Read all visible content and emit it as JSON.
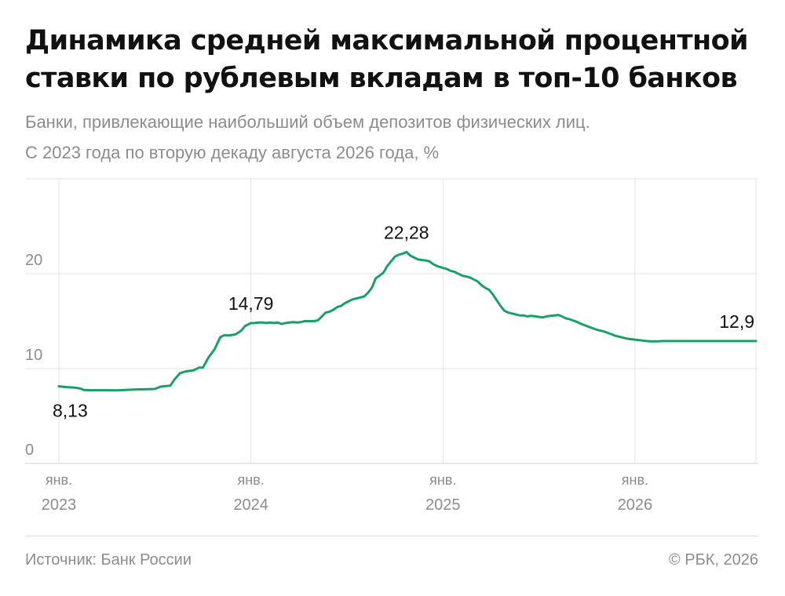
{
  "title": "Динамика средней максимальной процентной ставки по рублевым вкладам в топ-10 банков",
  "subtitle_line1": "Банки, привлекающие наибольший объем депозитов физических лиц.",
  "subtitle_line2": "С 2023 года по вторую декаду августа 2026 года, %",
  "source": "Источник: Банк России",
  "copyright": "© РБК, 2026",
  "colors": {
    "line": "#1aa067",
    "grid": "#e3e3e3",
    "axis_text": "#8c8c8c",
    "label_text": "#111111"
  },
  "chart_data": {
    "type": "line",
    "title": "Динамика средней максимальной процентной ставки по рублевым вкладам в топ-10 банков",
    "xlabel": "",
    "ylabel": "",
    "grid": true,
    "ylim": [
      0,
      30
    ],
    "yticks": [
      0,
      10,
      20
    ],
    "xlim": [
      2023.0,
      2026.63
    ],
    "xticks": [
      {
        "x": 2023,
        "label_top": "янв.",
        "label_bottom": "2023"
      },
      {
        "x": 2024,
        "label_top": "янв.",
        "label_bottom": "2024"
      },
      {
        "x": 2025,
        "label_top": "янв.",
        "label_bottom": "2025"
      },
      {
        "x": 2026,
        "label_top": "янв.",
        "label_bottom": "2026"
      }
    ],
    "series": [
      {
        "x": [
          2023.0,
          2023.04,
          2023.08,
          2023.11,
          2023.13,
          2023.16,
          2023.2,
          2023.25,
          2023.3,
          2023.35,
          2023.4,
          2023.45,
          2023.5,
          2023.53,
          2023.58,
          2023.6,
          2023.63,
          2023.66,
          2023.68,
          2023.7,
          2023.73,
          2023.75,
          2023.78,
          2023.81,
          2023.84,
          2023.86,
          2023.89,
          2023.92,
          2023.95,
          2023.97,
          2024.0,
          2024.02,
          2024.04,
          2024.06,
          2024.08,
          2024.1,
          2024.12,
          2024.14,
          2024.16,
          2024.18,
          2024.2,
          2024.22,
          2024.24,
          2024.26,
          2024.28,
          2024.31,
          2024.33,
          2024.35,
          2024.37,
          2024.39,
          2024.41,
          2024.43,
          2024.45,
          2024.47,
          2024.49,
          2024.51,
          2024.53,
          2024.55,
          2024.57,
          2024.59,
          2024.61,
          2024.63,
          2024.65,
          2024.67,
          2024.69,
          2024.71,
          2024.73,
          2024.75,
          2024.77,
          2024.79,
          2024.81,
          2024.83,
          2024.85,
          2024.87,
          2024.89,
          2024.91,
          2024.93,
          2024.95,
          2024.97,
          2025.0,
          2025.02,
          2025.04,
          2025.06,
          2025.08,
          2025.1,
          2025.12,
          2025.14,
          2025.16,
          2025.18,
          2025.2,
          2025.22,
          2025.24,
          2025.26,
          2025.28,
          2025.3,
          2025.32,
          2025.34,
          2025.36,
          2025.38,
          2025.4,
          2025.42,
          2025.44,
          2025.46,
          2025.48,
          2025.5,
          2025.52,
          2025.54,
          2025.56,
          2025.58,
          2025.6,
          2025.62,
          2025.64,
          2025.66,
          2025.68,
          2025.7,
          2025.72,
          2025.74,
          2025.76,
          2025.78,
          2025.8,
          2025.82,
          2025.84,
          2025.86,
          2025.88,
          2025.9,
          2025.92,
          2025.94,
          2025.96,
          2025.98,
          2026.0,
          2026.02,
          2026.04,
          2026.06,
          2026.08,
          2026.1,
          2026.12,
          2026.14,
          2026.16,
          2026.18,
          2026.2,
          2026.22,
          2026.24,
          2026.26,
          2026.28,
          2026.3,
          2026.32,
          2026.34,
          2026.36,
          2026.38,
          2026.4,
          2026.42,
          2026.44,
          2026.46,
          2026.48,
          2026.5,
          2026.52,
          2026.54,
          2026.56,
          2026.58,
          2026.6,
          2026.63
        ],
        "values": [
          8.13,
          8.05,
          8.0,
          7.9,
          7.75,
          7.72,
          7.72,
          7.72,
          7.7,
          7.75,
          7.8,
          7.82,
          7.85,
          8.1,
          8.2,
          8.8,
          9.5,
          9.7,
          9.75,
          9.8,
          10.1,
          10.1,
          11.2,
          12.0,
          13.3,
          13.5,
          13.5,
          13.6,
          14.0,
          14.5,
          14.79,
          14.8,
          14.85,
          14.85,
          14.8,
          14.85,
          14.8,
          14.85,
          14.7,
          14.8,
          14.85,
          14.9,
          14.85,
          14.9,
          15.0,
          15.0,
          15.0,
          15.1,
          15.5,
          15.9,
          16.0,
          16.2,
          16.5,
          16.6,
          16.9,
          17.1,
          17.3,
          17.4,
          17.5,
          17.6,
          18.0,
          18.5,
          19.5,
          19.8,
          20.1,
          20.8,
          21.3,
          21.8,
          22.0,
          22.1,
          22.28,
          21.9,
          21.7,
          21.5,
          21.45,
          21.4,
          21.3,
          21.0,
          20.8,
          20.6,
          20.5,
          20.3,
          20.2,
          20.0,
          19.8,
          19.7,
          19.6,
          19.4,
          19.2,
          18.8,
          18.5,
          18.3,
          17.8,
          17.2,
          16.6,
          16.1,
          15.9,
          15.8,
          15.7,
          15.6,
          15.6,
          15.5,
          15.55,
          15.5,
          15.45,
          15.4,
          15.5,
          15.55,
          15.6,
          15.65,
          15.5,
          15.3,
          15.2,
          15.05,
          14.9,
          14.7,
          14.55,
          14.4,
          14.25,
          14.1,
          14.0,
          13.9,
          13.75,
          13.6,
          13.45,
          13.35,
          13.25,
          13.15,
          13.1,
          13.05,
          13.0,
          12.95,
          12.9,
          12.88,
          12.87,
          12.88,
          12.9,
          12.9,
          12.9,
          12.9,
          12.9,
          12.9,
          12.9,
          12.9,
          12.9,
          12.9,
          12.9,
          12.9,
          12.9,
          12.9,
          12.9,
          12.9,
          12.9,
          12.9,
          12.9,
          12.9,
          12.9,
          12.9,
          12.9,
          12.9,
          12.9
        ]
      }
    ],
    "annotations": [
      {
        "x": 2023.0,
        "y": 8.13,
        "text": "8,13",
        "position": "below"
      },
      {
        "x": 2024.0,
        "y": 14.79,
        "text": "14,79",
        "position": "above"
      },
      {
        "x": 2024.81,
        "y": 22.28,
        "text": "22,28",
        "position": "above"
      },
      {
        "x": 2026.63,
        "y": 12.9,
        "text": "12,9",
        "position": "above"
      }
    ]
  }
}
